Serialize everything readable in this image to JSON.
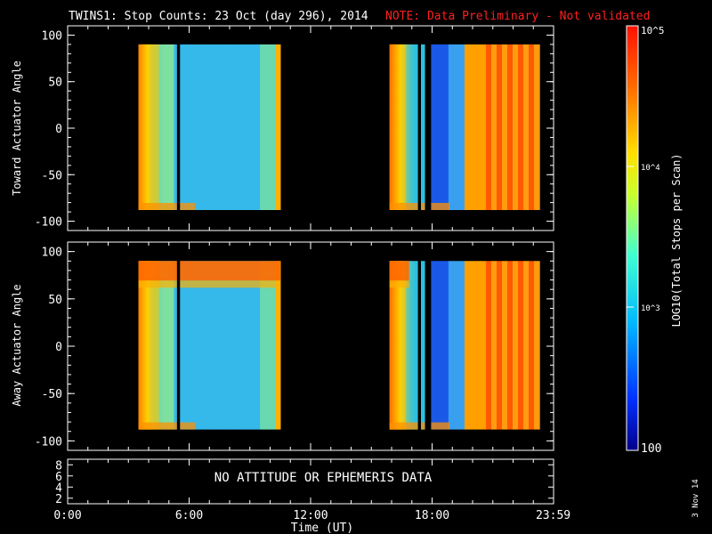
{
  "header": {
    "title": "TWINS1: Stop Counts: 23 Oct (day 296), 2014",
    "note": "NOTE: Data Preliminary - Not validated"
  },
  "footer": {
    "xlabel": "Time (UT)",
    "date_stamp": "3 Nov 14"
  },
  "colorbar": {
    "label": "LOG10(Total Stops per Scan)",
    "ticks": [
      "10^5",
      "10^4",
      "10^3",
      "100"
    ]
  },
  "colors": {
    "blue": "#1a56e8",
    "cyan": "#38bfe8",
    "orange": "#ff6a00",
    "red": "#ff2a00",
    "note": "#ff2020"
  },
  "chart_data": [
    {
      "type": "heatmap",
      "ylabel": "Toward Actuator Angle",
      "xlim": [
        0,
        24
      ],
      "ylim": [
        -110,
        110
      ],
      "yticks": [
        100,
        50,
        0,
        -50,
        -100
      ],
      "x_ticks": [
        "0:00",
        "6:00",
        "12:00",
        "18:00",
        "23:59"
      ],
      "data_coverage_hours": [
        [
          3.5,
          10.5
        ],
        [
          15.9,
          23.3
        ]
      ],
      "data_gaps_hours": [
        [
          5.4,
          5.55
        ],
        [
          17.3,
          17.45
        ],
        [
          17.65,
          17.95
        ]
      ],
      "angle_range": [
        -88,
        90
      ]
    },
    {
      "type": "heatmap",
      "ylabel": "Away Actuator Angle",
      "xlim": [
        0,
        24
      ],
      "ylim": [
        -110,
        110
      ],
      "yticks": [
        100,
        50,
        0,
        -50,
        -100
      ],
      "x_ticks": [
        "0:00",
        "6:00",
        "12:00",
        "18:00",
        "23:59"
      ],
      "data_coverage_hours": [
        [
          3.5,
          10.5
        ],
        [
          15.9,
          23.3
        ]
      ],
      "data_gaps_hours": [
        [
          5.4,
          5.55
        ],
        [
          17.3,
          17.45
        ],
        [
          17.65,
          17.95
        ]
      ],
      "angle_range": [
        -88,
        90
      ]
    },
    {
      "type": "table",
      "yticks": [
        8,
        6,
        4,
        2
      ],
      "message": "NO ATTITUDE OR EPHEMERIS DATA"
    }
  ]
}
